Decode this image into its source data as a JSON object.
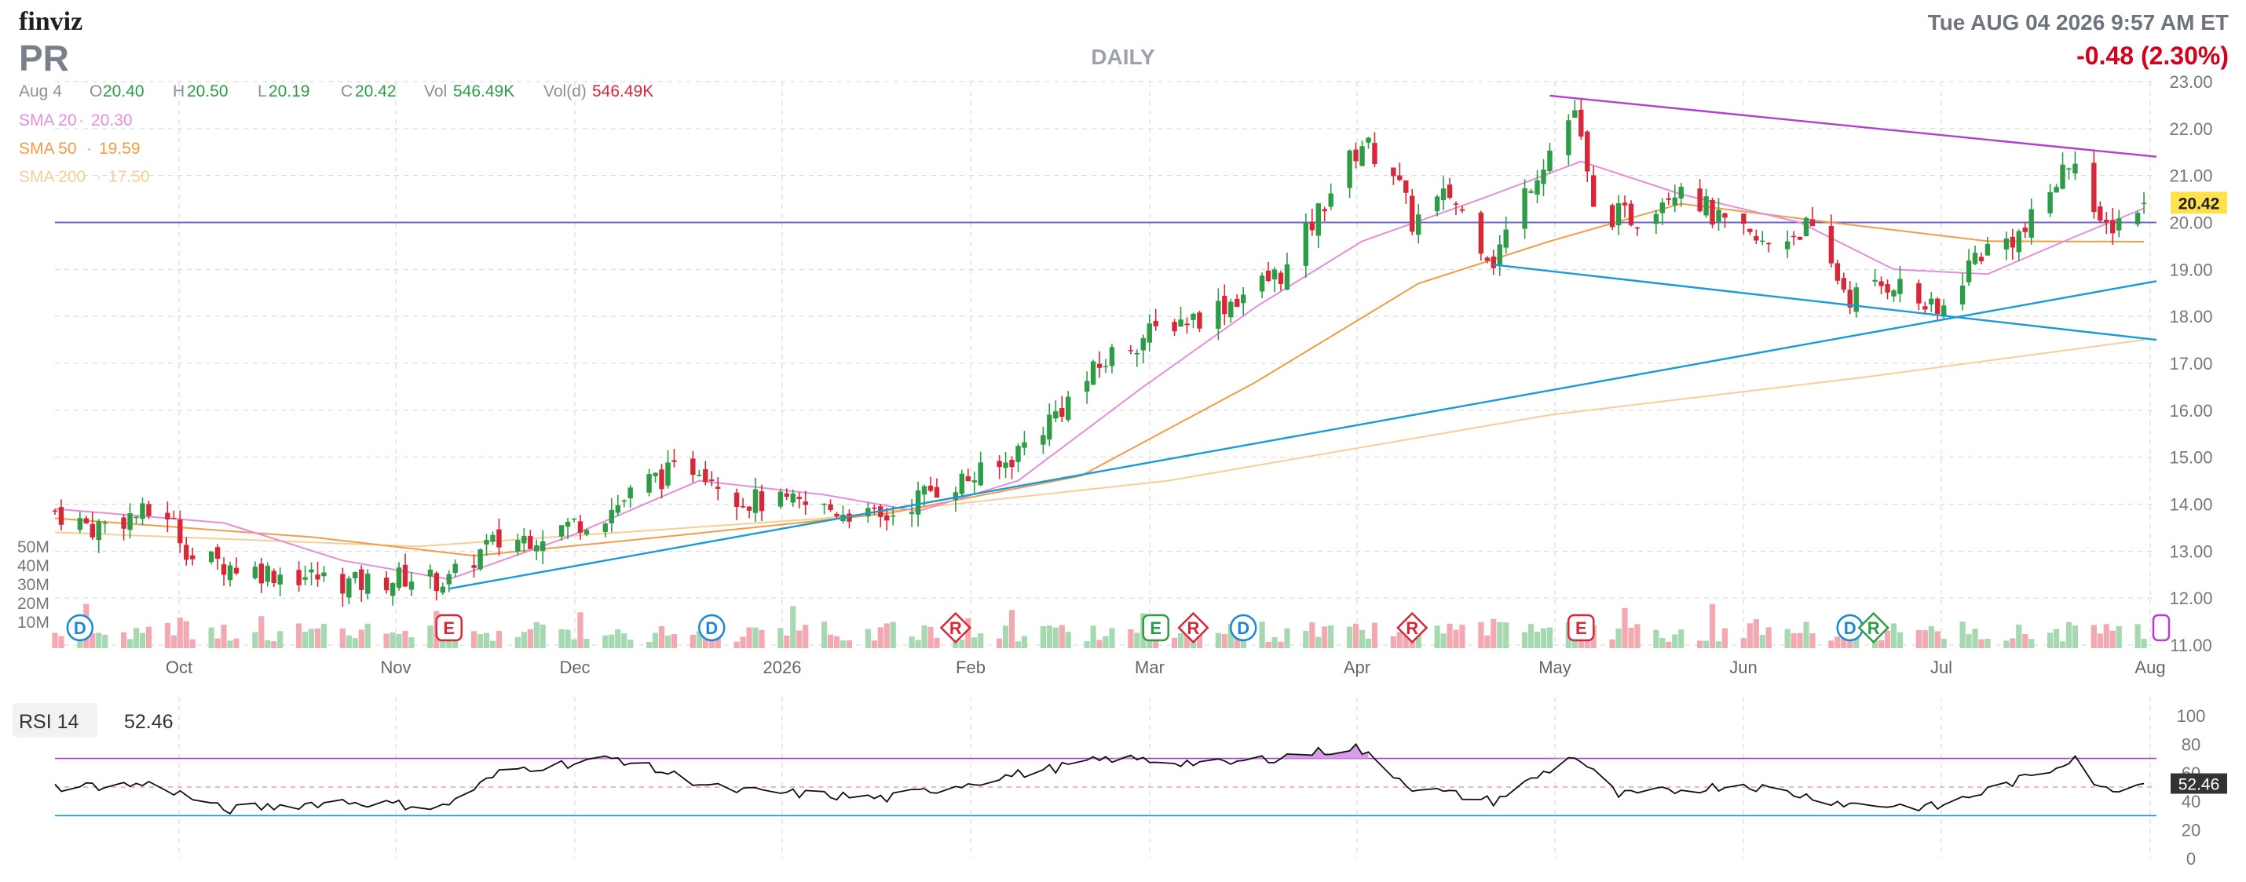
{
  "header": {
    "logo": "finviz",
    "ticker": "PR",
    "period": "DAILY",
    "datetime": "Tue AUG 04 2026 9:57 AM ET",
    "change": "-0.48 (2.30%)",
    "change_color": "#d0021b"
  },
  "ohlc": {
    "date": "Aug 4",
    "open_label": "O",
    "open": "20.40",
    "high_label": "H",
    "high": "20.50",
    "low_label": "L",
    "low": "20.19",
    "close_label": "C",
    "close": "20.42",
    "vol_label": "Vol",
    "vol": "546.49K",
    "vold_label": "Vol(d)",
    "vold": "546.49K"
  },
  "sma": [
    {
      "label": "SMA 20",
      "value": "20.30",
      "color": "#e48fd8"
    },
    {
      "label": "SMA 50",
      "value": "19.59",
      "color": "#f39b46"
    },
    {
      "label": "SMA 200",
      "value": "17.50",
      "color": "#f5cf98"
    }
  ],
  "last_price_tag": "20.42",
  "rsi": {
    "label": "RSI 14",
    "value": "52.46",
    "tag": "52.46"
  },
  "colors": {
    "up": "#2e9b46",
    "down": "#d62839",
    "grid": "#d5d5d5"
  },
  "chart_data": {
    "type": "candlestick",
    "y_range": [
      11,
      23
    ],
    "y_ticks": [
      "23.00",
      "22.00",
      "21.00",
      "20.00",
      "19.00",
      "18.00",
      "17.00",
      "16.00",
      "15.00",
      "14.00",
      "13.00",
      "12.00",
      "11.00"
    ],
    "x_labels": [
      "Oct",
      "Nov",
      "Dec",
      "2026",
      "Feb",
      "Mar",
      "Apr",
      "May",
      "Jun",
      "Jul",
      "Aug"
    ],
    "volume_ticks": [
      "50M",
      "40M",
      "30M",
      "20M",
      "10M"
    ],
    "rsi_range": [
      0,
      100
    ],
    "rsi_ticks": [
      "100",
      "80",
      "60",
      "40",
      "20",
      "0"
    ],
    "horizontal_level": 20.0,
    "events": [
      {
        "date": "2025-09-08",
        "type": "D"
      },
      {
        "date": "2025-11-06",
        "type": "E"
      },
      {
        "date": "2025-12-18",
        "type": "D"
      },
      {
        "date": "2026-01-26",
        "type": "R"
      },
      {
        "date": "2026-02-27",
        "type": "E"
      },
      {
        "date": "2026-03-05",
        "type": "R"
      },
      {
        "date": "2026-03-13",
        "type": "D"
      },
      {
        "date": "2026-04-09",
        "type": "R"
      },
      {
        "date": "2026-05-06",
        "type": "E"
      },
      {
        "date": "2026-06-18",
        "type": "D"
      },
      {
        "date": "2026-06-19",
        "type": "R"
      }
    ],
    "trendlines": [
      {
        "from": [
          "2025-11-06",
          12.2
        ],
        "to": [
          "2026-08-06",
          18.75
        ],
        "color": "#1a9ad6"
      },
      {
        "from": [
          "2026-04-22",
          19.1
        ],
        "to": [
          "2026-08-06",
          17.5
        ],
        "color": "#1a9ad6"
      },
      {
        "from": [
          "2026-05-01",
          22.7
        ],
        "to": [
          "2026-08-06",
          21.4
        ],
        "color": "#b23fcf"
      }
    ],
    "close_path": [
      [
        "2025-09-04",
        13.85
      ],
      [
        "2025-09-10",
        13.5
      ],
      [
        "2025-09-16",
        13.75
      ],
      [
        "2025-09-22",
        13.8
      ],
      [
        "2025-09-26",
        12.85
      ],
      [
        "2025-10-06",
        12.6
      ],
      [
        "2025-10-15",
        12.45
      ],
      [
        "2025-10-22",
        12.3
      ],
      [
        "2025-10-30",
        12.45
      ],
      [
        "2025-11-06",
        12.35
      ],
      [
        "2025-11-12",
        13.1
      ],
      [
        "2025-11-20",
        13.35
      ],
      [
        "2025-12-01",
        13.8
      ],
      [
        "2025-12-08",
        14.5
      ],
      [
        "2025-12-16",
        14.85
      ],
      [
        "2025-12-23",
        14.1
      ],
      [
        "2026-01-02",
        13.95
      ],
      [
        "2026-01-09",
        13.85
      ],
      [
        "2026-01-14",
        13.65
      ],
      [
        "2026-01-22",
        14.3
      ],
      [
        "2026-02-02",
        14.75
      ],
      [
        "2026-02-10",
        15.8
      ],
      [
        "2026-02-20",
        17.2
      ],
      [
        "2026-03-02",
        17.9
      ],
      [
        "2026-03-06",
        18.0
      ],
      [
        "2026-03-12",
        18.4
      ],
      [
        "2026-03-20",
        19.0
      ],
      [
        "2026-03-27",
        20.7
      ],
      [
        "2026-04-01",
        21.7
      ],
      [
        "2026-04-06",
        21.1
      ],
      [
        "2026-04-09",
        20.0
      ],
      [
        "2026-04-15",
        20.6
      ],
      [
        "2026-04-22",
        19.2
      ],
      [
        "2026-04-28",
        20.9
      ],
      [
        "2026-05-05",
        22.4
      ],
      [
        "2026-05-08",
        20.2
      ],
      [
        "2026-05-15",
        20.1
      ],
      [
        "2026-05-22",
        20.9
      ],
      [
        "2026-05-28",
        20.0
      ],
      [
        "2026-06-04",
        19.5
      ],
      [
        "2026-06-11",
        19.9
      ],
      [
        "2026-06-18",
        18.4
      ],
      [
        "2026-06-25",
        18.75
      ],
      [
        "2026-07-02",
        18.0
      ],
      [
        "2026-07-08",
        19.3
      ],
      [
        "2026-07-16",
        19.8
      ],
      [
        "2026-07-24",
        21.5
      ],
      [
        "2026-07-28",
        19.8
      ],
      [
        "2026-08-04",
        20.42
      ]
    ],
    "sma20": [
      [
        "2025-09-04",
        13.9
      ],
      [
        "2025-10-01",
        13.6
      ],
      [
        "2025-10-20",
        12.8
      ],
      [
        "2025-11-06",
        12.4
      ],
      [
        "2025-11-25",
        13.3
      ],
      [
        "2025-12-16",
        14.5
      ],
      [
        "2026-01-05",
        14.2
      ],
      [
        "2026-01-20",
        13.85
      ],
      [
        "2026-02-05",
        14.5
      ],
      [
        "2026-02-25",
        16.5
      ],
      [
        "2026-03-15",
        18.2
      ],
      [
        "2026-04-01",
        19.6
      ],
      [
        "2026-04-20",
        20.5
      ],
      [
        "2026-05-06",
        21.3
      ],
      [
        "2026-05-22",
        20.6
      ],
      [
        "2026-06-10",
        20.0
      ],
      [
        "2026-06-25",
        19.0
      ],
      [
        "2026-07-10",
        18.9
      ],
      [
        "2026-07-24",
        19.7
      ],
      [
        "2026-08-04",
        20.3
      ]
    ],
    "sma50": [
      [
        "2025-09-04",
        13.7
      ],
      [
        "2025-10-15",
        13.3
      ],
      [
        "2025-11-10",
        12.9
      ],
      [
        "2025-12-10",
        13.3
      ],
      [
        "2026-01-15",
        13.8
      ],
      [
        "2026-02-15",
        14.6
      ],
      [
        "2026-03-15",
        16.6
      ],
      [
        "2026-04-10",
        18.7
      ],
      [
        "2026-05-01",
        19.6
      ],
      [
        "2026-05-22",
        20.4
      ],
      [
        "2026-06-15",
        20.0
      ],
      [
        "2026-07-10",
        19.6
      ],
      [
        "2026-08-04",
        19.59
      ]
    ],
    "sma200": [
      [
        "2025-09-04",
        13.4
      ],
      [
        "2025-11-01",
        13.1
      ],
      [
        "2026-01-05",
        13.7
      ],
      [
        "2026-03-01",
        14.5
      ],
      [
        "2026-05-01",
        15.9
      ],
      [
        "2026-06-20",
        16.7
      ],
      [
        "2026-08-04",
        17.5
      ]
    ],
    "rsi_path": [
      [
        "2025-09-04",
        50
      ],
      [
        "2025-09-20",
        52
      ],
      [
        "2025-10-01",
        34
      ],
      [
        "2025-10-20",
        40
      ],
      [
        "2025-11-05",
        36
      ],
      [
        "2025-11-15",
        62
      ],
      [
        "2025-12-03",
        70
      ],
      [
        "2025-12-20",
        48
      ],
      [
        "2026-01-15",
        42
      ],
      [
        "2026-02-01",
        56
      ],
      [
        "2026-02-20",
        70
      ],
      [
        "2026-03-10",
        66
      ],
      [
        "2026-03-31",
        78
      ],
      [
        "2026-04-09",
        50
      ],
      [
        "2026-04-22",
        40
      ],
      [
        "2026-05-05",
        72
      ],
      [
        "2026-05-12",
        44
      ],
      [
        "2026-06-01",
        52
      ],
      [
        "2026-06-18",
        38
      ],
      [
        "2026-07-02",
        36
      ],
      [
        "2026-07-20",
        62
      ],
      [
        "2026-07-24",
        72
      ],
      [
        "2026-07-28",
        48
      ],
      [
        "2026-08-04",
        52.46
      ]
    ]
  }
}
